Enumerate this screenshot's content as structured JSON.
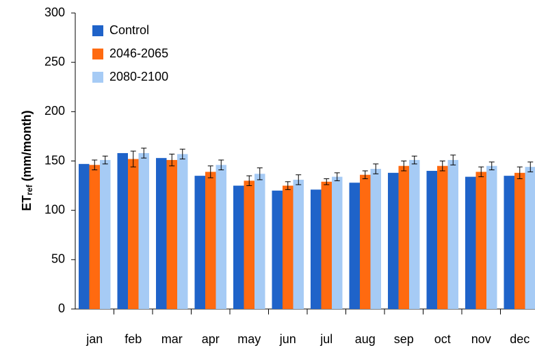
{
  "chart_data": {
    "type": "bar",
    "y_label": {
      "main": "ET",
      "sub": "ref",
      "rest": " (mm/month)"
    },
    "categories": [
      "jan",
      "feb",
      "mar",
      "apr",
      "may",
      "jun",
      "jul",
      "aug",
      "sep",
      "oct",
      "nov",
      "dec"
    ],
    "series": [
      {
        "name": "Control",
        "color": "#1f63c9",
        "values": [
          147,
          158,
          153,
          135,
          125,
          120,
          121,
          128,
          138,
          140,
          134,
          135
        ]
      },
      {
        "name": "2046-2065",
        "color": "#ff6a10",
        "values": [
          146,
          152,
          151,
          139,
          130,
          125,
          129,
          136,
          145,
          145,
          139,
          138
        ],
        "errors": [
          5,
          8,
          6,
          6,
          5,
          4,
          3,
          4,
          5,
          5,
          5,
          6
        ]
      },
      {
        "name": "2080-2100",
        "color": "#a6cbf5",
        "values": [
          151,
          158,
          157,
          146,
          137,
          131,
          134,
          142,
          151,
          151,
          145,
          144
        ],
        "errors": [
          4,
          5,
          5,
          5,
          6,
          5,
          4,
          5,
          4,
          5,
          4,
          5
        ]
      }
    ],
    "ylim": [
      0,
      300
    ],
    "yticks": [
      0,
      50,
      100,
      150,
      200,
      250,
      300
    ],
    "grid": false,
    "legend": "top-left"
  }
}
